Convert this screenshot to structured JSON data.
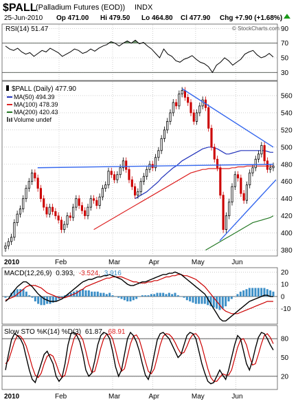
{
  "header": {
    "symbol": "$PALL",
    "name": "(Palladium Futures (EOD))",
    "exchange": "INDX",
    "date": "25-Jun-2010",
    "open": "Op 471.00",
    "high": "Hi 479.50",
    "low": "Lo 464.80",
    "close": "Cl 477.90",
    "change": "Chg +7.90 (+1.68%)",
    "change_arrow": "up-arrow-icon",
    "copyright": "© StockCharts.com"
  },
  "colors": {
    "up": "#000000",
    "down": "#cc0000",
    "ma50": "#2233bb",
    "ma100": "#dd2222",
    "ma200": "#227722",
    "trend": "#3366ee",
    "rsi_fill": "#5a8a5a",
    "macd_hist": "#3d8fc7",
    "grid": "#b0b0b0"
  },
  "chart_data": [
    {
      "panel": "rsi",
      "type": "line",
      "title": "RSI(14) 51.47",
      "ylim": [
        20,
        95
      ],
      "yticks": [
        90,
        70,
        50,
        30
      ],
      "reference_lines": [
        70,
        30
      ],
      "values": [
        66,
        62,
        60,
        63,
        58,
        55,
        57,
        52,
        56,
        60,
        58,
        63,
        60,
        57,
        52,
        55,
        58,
        62,
        60,
        56,
        58,
        62,
        59,
        63,
        66,
        68,
        72,
        70,
        66,
        70,
        73,
        70,
        74,
        69,
        71,
        66,
        62,
        56,
        50,
        62,
        55,
        52,
        46,
        44,
        48,
        50,
        53,
        48,
        44,
        42,
        38,
        30,
        40,
        44,
        50,
        46,
        40,
        44,
        48,
        55,
        58,
        60,
        54,
        50,
        52,
        56,
        51
      ]
    },
    {
      "panel": "price",
      "type": "candlestick",
      "title": "$PALL (Daily) 477.90",
      "ylim": [
        374,
        576
      ],
      "yticks": [
        560,
        540,
        520,
        500,
        480,
        460,
        440,
        420,
        400,
        380
      ],
      "xticks": [
        "2010",
        "Feb",
        "Mar",
        "Apr",
        "May",
        "Jun"
      ],
      "legend": [
        {
          "label": "MA(50) 494.39",
          "color": "#2233bb"
        },
        {
          "label": "MA(100) 478.39",
          "color": "#dd2222"
        },
        {
          "label": "MA(200) 420.43",
          "color": "#227722"
        },
        {
          "label": "Volume undef",
          "color": "#555555"
        }
      ],
      "close": [
        385,
        390,
        395,
        412,
        422,
        428,
        440,
        452,
        460,
        470,
        464,
        452,
        440,
        430,
        422,
        430,
        425,
        420,
        415,
        404,
        410,
        420,
        418,
        430,
        440,
        432,
        426,
        420,
        430,
        440,
        438,
        432,
        442,
        452,
        456,
        472,
        468,
        462,
        468,
        476,
        484,
        474,
        462,
        454,
        444,
        448,
        460,
        466,
        474,
        480,
        476,
        488,
        496,
        510,
        520,
        530,
        540,
        552,
        548,
        562,
        566,
        558,
        552,
        540,
        530,
        540,
        548,
        555,
        546,
        522,
        500,
        486,
        476,
        444,
        404,
        420,
        436,
        454,
        468,
        464,
        446,
        438,
        456,
        470,
        476,
        486,
        492,
        502,
        484,
        474,
        476,
        478
      ],
      "ma50": [
        null,
        null,
        null,
        null,
        null,
        null,
        null,
        null,
        null,
        null,
        null,
        null,
        null,
        null,
        null,
        null,
        null,
        null,
        null,
        null,
        null,
        null,
        null,
        null,
        null,
        null,
        null,
        null,
        null,
        null,
        null,
        null,
        null,
        null,
        null,
        null,
        null,
        null,
        null,
        null,
        null,
        null,
        null,
        null,
        440,
        442,
        444,
        446,
        448,
        451,
        454,
        457,
        460,
        464,
        467,
        470,
        473,
        476,
        478,
        481,
        484,
        486,
        488,
        490,
        492,
        494,
        496,
        498,
        499,
        500,
        500,
        499,
        498,
        496,
        494,
        492,
        492,
        493,
        494,
        495,
        496,
        496,
        496,
        496,
        496,
        496,
        496,
        496,
        496,
        495,
        494,
        494
      ],
      "ma100": [
        null,
        null,
        null,
        null,
        null,
        null,
        null,
        null,
        null,
        null,
        null,
        null,
        null,
        null,
        null,
        null,
        null,
        null,
        null,
        null,
        null,
        null,
        null,
        null,
        null,
        null,
        null,
        null,
        null,
        null,
        404,
        406,
        408,
        410,
        412,
        414,
        416,
        418,
        420,
        422,
        424,
        426,
        428,
        430,
        432,
        434,
        436,
        438,
        440,
        442,
        444,
        446,
        448,
        450,
        452,
        454,
        456,
        458,
        460,
        462,
        464,
        466,
        468,
        470,
        471,
        472,
        473,
        474,
        474,
        475,
        475,
        475,
        475,
        475,
        475,
        475,
        475,
        476,
        476,
        477,
        477,
        477,
        478,
        478,
        478,
        478,
        478,
        478,
        478,
        478,
        478,
        478
      ],
      "ma200": [
        null,
        null,
        null,
        null,
        null,
        null,
        null,
        null,
        null,
        null,
        null,
        null,
        null,
        null,
        null,
        null,
        null,
        null,
        null,
        null,
        null,
        null,
        null,
        null,
        null,
        null,
        null,
        null,
        null,
        null,
        null,
        null,
        null,
        null,
        null,
        null,
        null,
        null,
        null,
        null,
        null,
        null,
        null,
        null,
        null,
        null,
        null,
        null,
        null,
        null,
        null,
        null,
        null,
        null,
        null,
        null,
        null,
        null,
        null,
        null,
        null,
        null,
        null,
        null,
        null,
        null,
        null,
        null,
        380,
        382,
        384,
        386,
        388,
        390,
        392,
        394,
        396,
        398,
        400,
        402,
        404,
        406,
        408,
        410,
        412,
        413,
        414,
        415,
        416,
        417,
        418,
        420
      ]
    },
    {
      "panel": "macd",
      "type": "line",
      "title": "MACD(12,26,9) 0.393, -3.524, 3.916",
      "title_parts": {
        "label": "MACD(12,26,9)",
        "macd": "0.393,",
        "signal": "-3.524,",
        "histogram": "3.916"
      },
      "ylim": [
        -22,
        23
      ],
      "yticks": [
        20,
        10,
        0,
        -10
      ],
      "macd": [
        -4,
        -2,
        2,
        5,
        8,
        10,
        12,
        12,
        10,
        8,
        5,
        2,
        0,
        -2,
        -3,
        -4,
        -4,
        -4,
        -3,
        -2,
        0,
        2,
        4,
        6,
        8,
        10,
        12,
        13,
        14,
        14,
        15,
        16,
        16,
        17,
        17,
        18,
        17,
        16,
        15,
        14,
        12,
        10,
        9,
        9,
        10,
        11,
        12,
        12,
        13,
        14,
        15,
        16,
        17,
        18,
        18,
        19,
        19,
        20,
        19,
        18,
        16,
        14,
        12,
        10,
        8,
        6,
        4,
        2,
        -2,
        -6,
        -10,
        -14,
        -18,
        -20,
        -20,
        -18,
        -16,
        -14,
        -12,
        -10,
        -8,
        -6,
        -4,
        -3,
        -2,
        -1,
        0,
        1,
        1,
        0,
        0
      ],
      "signal": [
        -3,
        -2,
        -1,
        0,
        2,
        4,
        6,
        8,
        9,
        9,
        9,
        8,
        7,
        5,
        3,
        2,
        1,
        0,
        -1,
        -1,
        -1,
        0,
        1,
        2,
        3,
        5,
        6,
        8,
        9,
        10,
        11,
        12,
        13,
        14,
        15,
        15,
        16,
        16,
        16,
        16,
        15,
        14,
        13,
        12,
        12,
        11,
        11,
        11,
        12,
        12,
        13,
        13,
        14,
        15,
        16,
        16,
        17,
        17,
        18,
        18,
        17,
        17,
        16,
        15,
        14,
        12,
        10,
        8,
        5,
        2,
        -1,
        -4,
        -7,
        -10,
        -12,
        -13,
        -14,
        -14,
        -14,
        -13,
        -12,
        -11,
        -10,
        -9,
        -8,
        -7,
        -6,
        -5,
        -4,
        -4,
        -4
      ],
      "histogram": [
        -1,
        0,
        3,
        5,
        6,
        6,
        6,
        4,
        1,
        -1,
        -4,
        -6,
        -7,
        -7,
        -6,
        -6,
        -5,
        -4,
        -2,
        -1,
        1,
        2,
        3,
        4,
        5,
        5,
        6,
        5,
        5,
        4,
        4,
        4,
        3,
        3,
        2,
        3,
        1,
        0,
        -1,
        -2,
        -3,
        -4,
        -4,
        -3,
        -2,
        0,
        1,
        1,
        1,
        2,
        2,
        3,
        3,
        3,
        2,
        3,
        2,
        3,
        1,
        0,
        -1,
        -3,
        -4,
        -5,
        -6,
        -6,
        -6,
        -6,
        -7,
        -8,
        -9,
        -10,
        -11,
        -10,
        -8,
        -4,
        -2,
        0,
        2,
        4,
        5,
        6,
        7,
        7,
        7,
        7,
        7,
        7,
        6,
        5,
        4
      ]
    },
    {
      "panel": "stochastic",
      "type": "line",
      "title": "Slow STO %K(14) %D(3) 61.87, 68.91",
      "title_parts": {
        "label": "Slow STO %K(14) %D(3)",
        "k": "61.87,",
        "d": "68.91"
      },
      "ylim": [
        0,
        100
      ],
      "yticks": [
        80,
        50,
        20
      ],
      "reference_lines": [
        80,
        20
      ],
      "xticks": [
        "2010",
        "Feb",
        "Mar",
        "Apr",
        "May",
        "Jun"
      ],
      "k": [
        30,
        55,
        78,
        88,
        85,
        80,
        70,
        50,
        30,
        15,
        10,
        25,
        40,
        55,
        60,
        50,
        40,
        20,
        12,
        18,
        40,
        70,
        88,
        90,
        85,
        75,
        55,
        30,
        20,
        25,
        45,
        70,
        85,
        90,
        88,
        80,
        60,
        35,
        20,
        30,
        55,
        80,
        90,
        85,
        75,
        60,
        40,
        22,
        15,
        30,
        55,
        78,
        88,
        90,
        85,
        80,
        70,
        60,
        50,
        55,
        70,
        85,
        90,
        88,
        80,
        60,
        40,
        25,
        12,
        8,
        10,
        20,
        30,
        22,
        15,
        30,
        50,
        70,
        85,
        80,
        60,
        40,
        30,
        45,
        65,
        82,
        90,
        88,
        80,
        70,
        62
      ],
      "d": [
        40,
        45,
        60,
        75,
        85,
        84,
        78,
        68,
        52,
        35,
        22,
        18,
        25,
        40,
        52,
        55,
        52,
        40,
        26,
        18,
        22,
        40,
        62,
        80,
        88,
        86,
        78,
        60,
        40,
        26,
        28,
        45,
        65,
        80,
        87,
        87,
        80,
        62,
        42,
        28,
        32,
        52,
        72,
        84,
        86,
        78,
        62,
        44,
        28,
        24,
        32,
        50,
        70,
        84,
        88,
        87,
        82,
        74,
        64,
        56,
        58,
        68,
        80,
        87,
        88,
        82,
        68,
        50,
        32,
        18,
        12,
        12,
        18,
        24,
        22,
        22,
        30,
        48,
        66,
        78,
        80,
        70,
        52,
        38,
        40,
        55,
        72,
        85,
        88,
        82,
        72
      ]
    }
  ]
}
